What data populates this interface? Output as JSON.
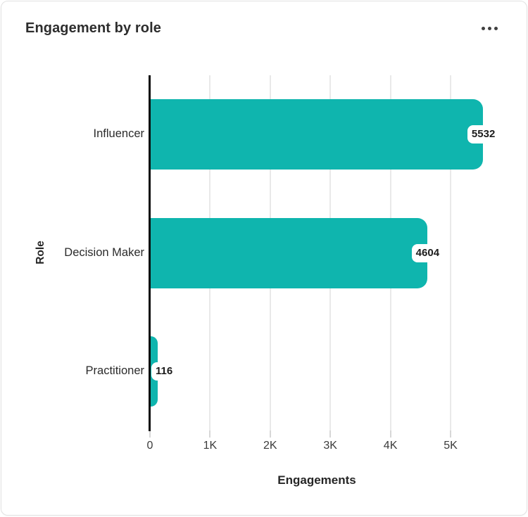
{
  "card": {
    "title": "Engagement by role",
    "menu_icon": "ellipsis"
  },
  "chart_data": {
    "type": "bar",
    "orientation": "horizontal",
    "title": "Engagement by role",
    "categories": [
      "Influencer",
      "Decision Maker",
      "Practitioner"
    ],
    "values": [
      5532,
      4604,
      116
    ],
    "value_labels": [
      "5532",
      "4604",
      "116"
    ],
    "xlabel": "Engagements",
    "ylabel": "Role",
    "x_ticks": [
      {
        "value": 0,
        "label": "0"
      },
      {
        "value": 1000,
        "label": "1K"
      },
      {
        "value": 2000,
        "label": "2K"
      },
      {
        "value": 3000,
        "label": "3K"
      },
      {
        "value": 4000,
        "label": "4K"
      },
      {
        "value": 5000,
        "label": "5K"
      }
    ],
    "xlim": [
      0,
      5550
    ],
    "grid": true,
    "legend": false,
    "colors": {
      "bar": "#0FB5AE",
      "axis": "#0b0b0b",
      "gridline": "#e9e9e9",
      "text": "#2b2b2b"
    }
  }
}
